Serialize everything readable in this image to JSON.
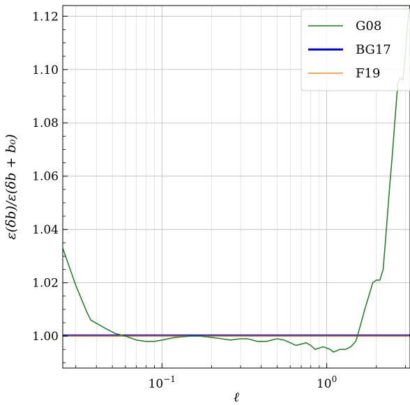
{
  "chart_data": {
    "type": "line",
    "xscale": "log",
    "xlabel": "ℓ",
    "ylabel": "ε(δb)/ε(δb + b₀)",
    "xlim": [
      0.025,
      3.2
    ],
    "ylim": [
      0.988,
      1.124
    ],
    "grid": true,
    "legend": "top-right",
    "x_ticks": [
      {
        "value": 0.1,
        "mantissa": "10",
        "exponent": "−1"
      },
      {
        "value": 1.0,
        "mantissa": "10",
        "exponent": "0"
      }
    ],
    "y_ticks": [
      {
        "value": 1.0,
        "label": "1.00"
      },
      {
        "value": 1.02,
        "label": "1.02"
      },
      {
        "value": 1.04,
        "label": "1.04"
      },
      {
        "value": 1.06,
        "label": "1.06"
      },
      {
        "value": 1.08,
        "label": "1.08"
      },
      {
        "value": 1.1,
        "label": "1.10"
      },
      {
        "value": 1.12,
        "label": "1.12"
      }
    ],
    "series": [
      {
        "name": "G08",
        "color": "#1a7f1a",
        "width": 1.5,
        "x": [
          0.025,
          0.03,
          0.035,
          0.037,
          0.045,
          0.052,
          0.06,
          0.07,
          0.08,
          0.09,
          0.1,
          0.12,
          0.15,
          0.17,
          0.2,
          0.23,
          0.26,
          0.3,
          0.33,
          0.38,
          0.43,
          0.5,
          0.55,
          0.6,
          0.65,
          0.7,
          0.75,
          0.8,
          0.85,
          0.9,
          0.95,
          1.0,
          1.05,
          1.1,
          1.15,
          1.2,
          1.3,
          1.4,
          1.5,
          1.55,
          1.6,
          1.7,
          1.8,
          1.9,
          2.0,
          2.1,
          2.2,
          2.3,
          2.4,
          2.5,
          2.6,
          2.7,
          2.8,
          2.9,
          3.0,
          3.1,
          3.2
        ],
        "y": [
          1.033,
          1.019,
          1.009,
          1.006,
          1.003,
          1.001,
          1.0,
          0.9985,
          0.998,
          0.998,
          0.9985,
          0.9995,
          1.0,
          1.0,
          0.9995,
          0.999,
          0.9985,
          0.999,
          0.999,
          0.998,
          0.998,
          0.999,
          0.9985,
          0.9975,
          0.9965,
          0.997,
          0.9975,
          0.9965,
          0.995,
          0.9955,
          0.996,
          0.9955,
          0.995,
          0.994,
          0.9945,
          0.995,
          0.995,
          0.996,
          0.998,
          1.001,
          1.004,
          1.01,
          1.015,
          1.02,
          1.021,
          1.021,
          1.025,
          1.04,
          1.055,
          1.068,
          1.082,
          1.095,
          1.097,
          1.096,
          1.106,
          1.118,
          1.124
        ]
      },
      {
        "name": "BG17",
        "color": "#0000dd",
        "width": 3,
        "x": [
          0.025,
          3.2
        ],
        "y": [
          1.0002,
          1.0002
        ]
      },
      {
        "name": "F19",
        "color": "#ff8c1a",
        "width": 1.5,
        "x": [
          0.025,
          3.2
        ],
        "y": [
          1.0,
          1.0
        ]
      }
    ]
  }
}
